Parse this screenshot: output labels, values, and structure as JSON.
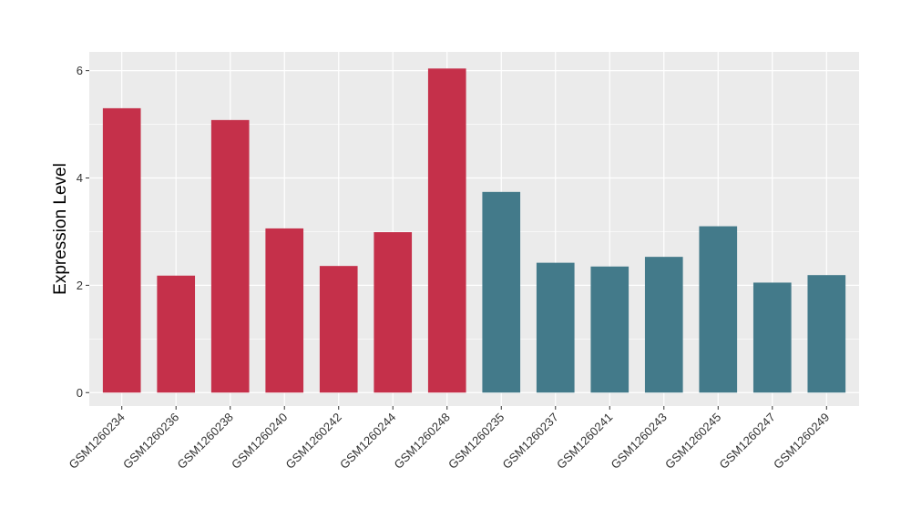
{
  "chart_data": {
    "type": "bar",
    "title": "",
    "xlabel": "",
    "ylabel": "Expression Level",
    "ylim": [
      -0.25,
      6.35
    ],
    "yticks": [
      0,
      2,
      4,
      6
    ],
    "y_tick_labels": [
      "0",
      "2",
      "4",
      "6"
    ],
    "grid": true,
    "legend": "none",
    "colors": {
      "group_a": "#C5304A",
      "group_b": "#437A8A",
      "panel_bg": "#EBEBEB",
      "grid": "#FFFFFF"
    },
    "categories": [
      "GSM1260234",
      "GSM1260236",
      "GSM1260238",
      "GSM1260240",
      "GSM1260242",
      "GSM1260244",
      "GSM1260248",
      "GSM1260235",
      "GSM1260237",
      "GSM1260241",
      "GSM1260243",
      "GSM1260245",
      "GSM1260247",
      "GSM1260249"
    ],
    "values": [
      5.3,
      2.18,
      5.08,
      3.06,
      2.36,
      2.99,
      6.04,
      3.74,
      2.42,
      2.35,
      2.53,
      3.1,
      2.05,
      2.19
    ],
    "groups": [
      "a",
      "a",
      "a",
      "a",
      "a",
      "a",
      "a",
      "b",
      "b",
      "b",
      "b",
      "b",
      "b",
      "b"
    ]
  }
}
